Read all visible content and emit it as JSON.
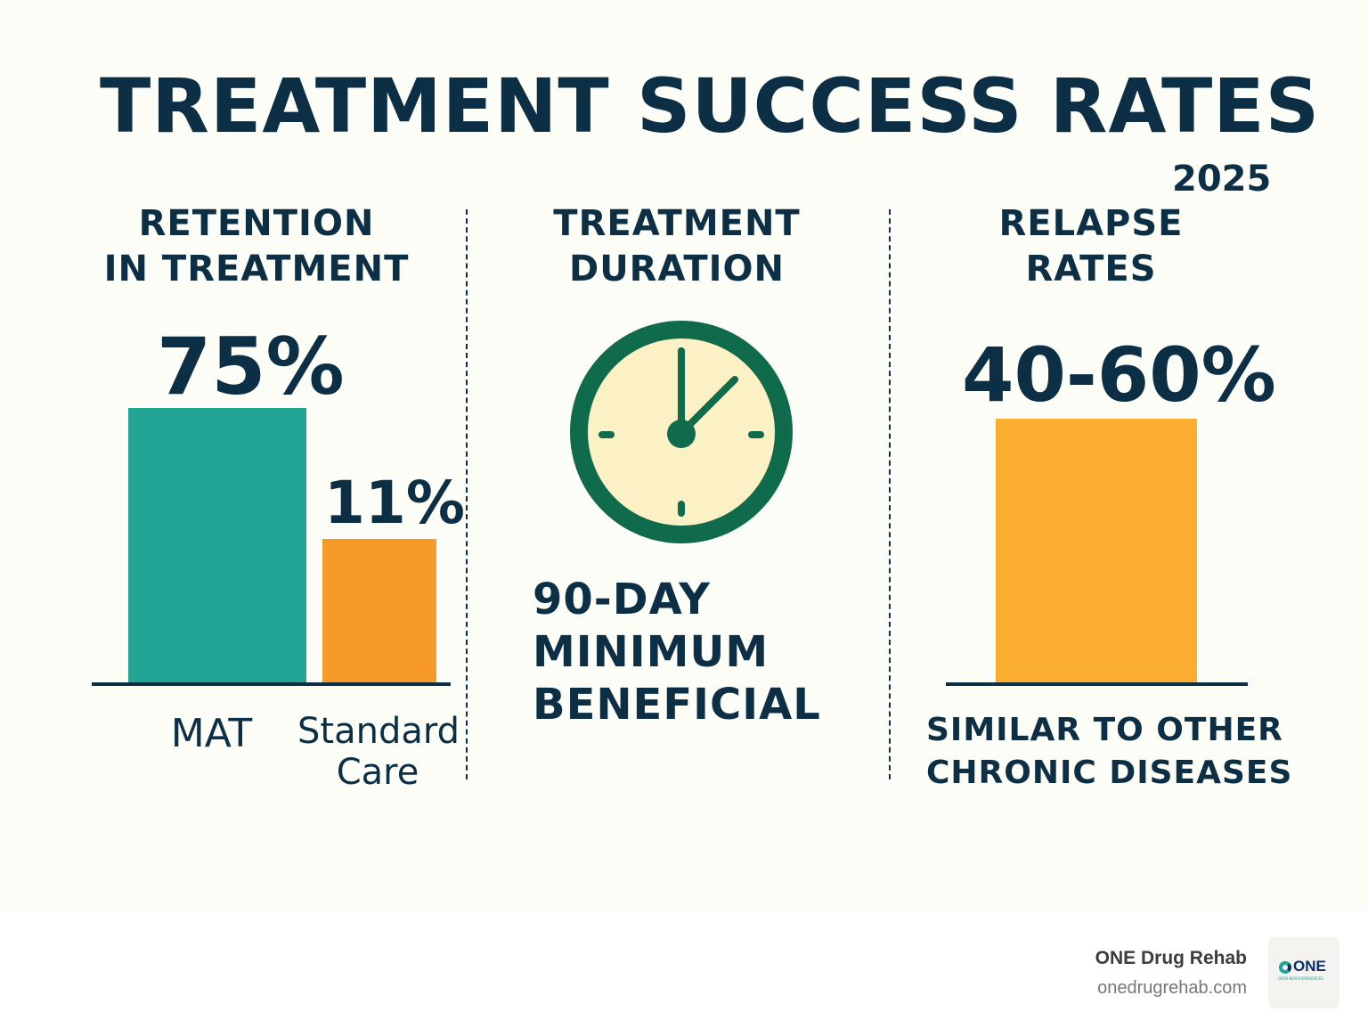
{
  "title": "TREATMENT SUCCESS RATES",
  "year": "2025",
  "colors": {
    "navy": "#0d2f45",
    "teal": "#22a595",
    "orange": "#f79a28",
    "amber": "#fbad2f",
    "clock_green": "#0f6b4c",
    "clock_face": "#fbf1c4"
  },
  "retention": {
    "heading_line1": "RETENTION",
    "heading_line2": "IN TREATMENT",
    "mat_value": "75%",
    "standard_value": "11%",
    "mat_label": "MAT",
    "standard_label_line1": "Standard",
    "standard_label_line2": "Care"
  },
  "duration": {
    "heading_line1": "TREATMENT",
    "heading_line2": "DURATION",
    "icon": "clock-icon",
    "text_line1": "90-DAY",
    "text_line2": "MINIMUM",
    "text_line3": "BENEFICIAL"
  },
  "relapse": {
    "heading_line1": "RELAPSE",
    "heading_line2": "RATES",
    "value": "40-60%",
    "caption_line1": "SIMILAR TO OTHER",
    "caption_line2": "CHRONIC DISEASES"
  },
  "footer": {
    "brand": "ONE Drug Rehab",
    "url": "onedrugrehab.com",
    "logo_text": "ONE",
    "logo_tagline": "OPEN NEW EXPERIENCES"
  },
  "chart_data": [
    {
      "type": "bar",
      "title": "RETENTION IN TREATMENT",
      "categories": [
        "MAT",
        "Standard Care"
      ],
      "values": [
        75,
        11
      ],
      "unit": "%"
    },
    {
      "type": "bar",
      "title": "RELAPSE RATES",
      "categories": [
        ""
      ],
      "values": [
        [
          40,
          60
        ]
      ],
      "unit": "%"
    }
  ]
}
